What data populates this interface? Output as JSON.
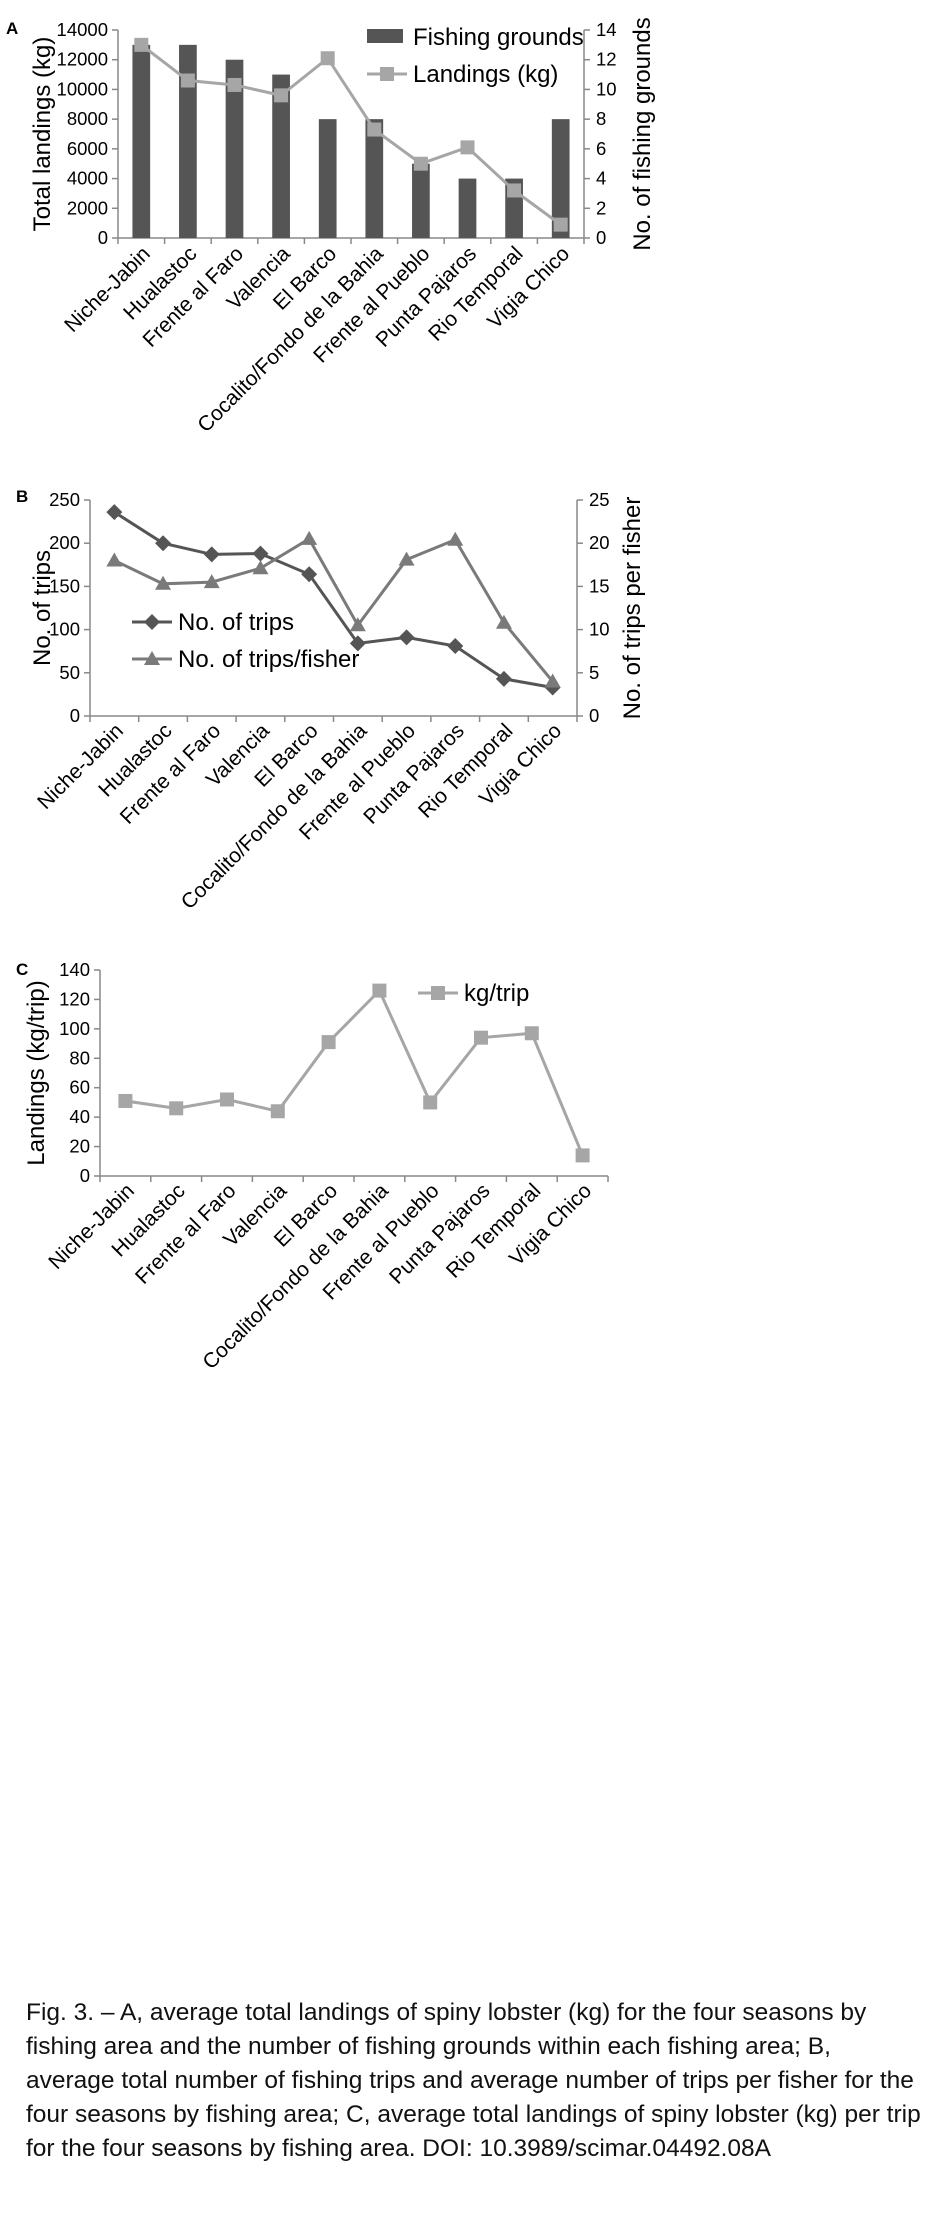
{
  "figure": {
    "caption": "Fig. 3. – A, average total landings of spiny lobster (kg) for the four seasons by fishing area and the number of fishing grounds within each fishing area; B, average total number of fishing trips and average number of trips per fisher for the four seasons by fishing area; C, average total landings of spiny lobster (kg) per trip for the four seasons by fishing area. DOI: 10.3989/scimar.04492.08A"
  },
  "colors": {
    "bars": "#555555",
    "light_series": "#a6a6a6",
    "dark_series": "#555555",
    "axis": "#888888"
  },
  "chart_data": [
    {
      "panel_label": "A",
      "type": "bar",
      "categories": [
        "Niche-Jabin",
        "Hualastoc",
        "Frente al Faro",
        "Valencia",
        "El Barco",
        "Cocalito/Fondo de la Bahia",
        "Frente al Pueblo",
        "Punta Pajaros",
        "Rio Temporal",
        "Vigia Chico"
      ],
      "ylabel": "Total landings (kg)",
      "ylabel_right": "No. of fishing grounds",
      "ylim": [
        0,
        14000
      ],
      "ylim_right": [
        0,
        14
      ],
      "yticks": [
        "0",
        "2000",
        "4000",
        "6000",
        "8000",
        "10000",
        "12000",
        "14000"
      ],
      "yticks_right": [
        "0",
        "2",
        "4",
        "6",
        "8",
        "10",
        "12",
        "14"
      ],
      "legend_position": "top-right",
      "series": [
        {
          "name": "Fishing grounds",
          "kind": "bar",
          "axis": "right",
          "values": [
            13,
            13,
            12,
            11,
            8,
            8,
            5,
            4,
            4,
            8
          ]
        },
        {
          "name": "Landings (kg)",
          "kind": "line",
          "marker": "square",
          "axis": "left",
          "values": [
            13000,
            10600,
            10300,
            9600,
            12100,
            7300,
            5000,
            6100,
            3200,
            900
          ]
        }
      ]
    },
    {
      "panel_label": "B",
      "type": "line",
      "categories": [
        "Niche-Jabin",
        "Hualastoc",
        "Frente al Faro",
        "Valencia",
        "El Barco",
        "Cocalito/Fondo de la Bahia",
        "Frente al Pueblo",
        "Punta Pajaros",
        "Rio Temporal",
        "Vigia Chico"
      ],
      "ylabel": "No. of trips",
      "ylabel_right": "No. of trips per fisher",
      "ylim": [
        0,
        250
      ],
      "ylim_right": [
        0,
        25
      ],
      "yticks": [
        "0",
        "50",
        "100",
        "150",
        "200",
        "250"
      ],
      "yticks_right": [
        "0",
        "5",
        "10",
        "15",
        "20",
        "25"
      ],
      "legend_position": "middle-left",
      "series": [
        {
          "name": "No. of trips",
          "kind": "line",
          "marker": "diamond",
          "axis": "left",
          "values": [
            236,
            200,
            187,
            188,
            164,
            84,
            91,
            81,
            43,
            33
          ]
        },
        {
          "name": "No. of trips/fisher",
          "kind": "line",
          "marker": "triangle",
          "axis": "right",
          "values": [
            18.0,
            15.3,
            15.5,
            17.1,
            20.5,
            10.5,
            18.1,
            20.4,
            10.8,
            4.0
          ]
        }
      ]
    },
    {
      "panel_label": "C",
      "type": "line",
      "categories": [
        "Niche-Jabin",
        "Hualastoc",
        "Frente al Faro",
        "Valencia",
        "El Barco",
        "Cocalito/Fondo de la Bahia",
        "Frente al Pueblo",
        "Punta Pajaros",
        "Rio Temporal",
        "Vigia Chico"
      ],
      "ylabel": "Landings  (kg/trip)",
      "ylim": [
        0,
        140
      ],
      "yticks": [
        "0",
        "20",
        "40",
        "60",
        "80",
        "100",
        "120",
        "140"
      ],
      "legend_position": "top-right",
      "series": [
        {
          "name": "kg/trip",
          "kind": "line",
          "marker": "square",
          "axis": "left",
          "values": [
            51,
            46,
            52,
            44,
            91,
            126,
            50,
            94,
            97,
            14
          ]
        }
      ]
    }
  ]
}
